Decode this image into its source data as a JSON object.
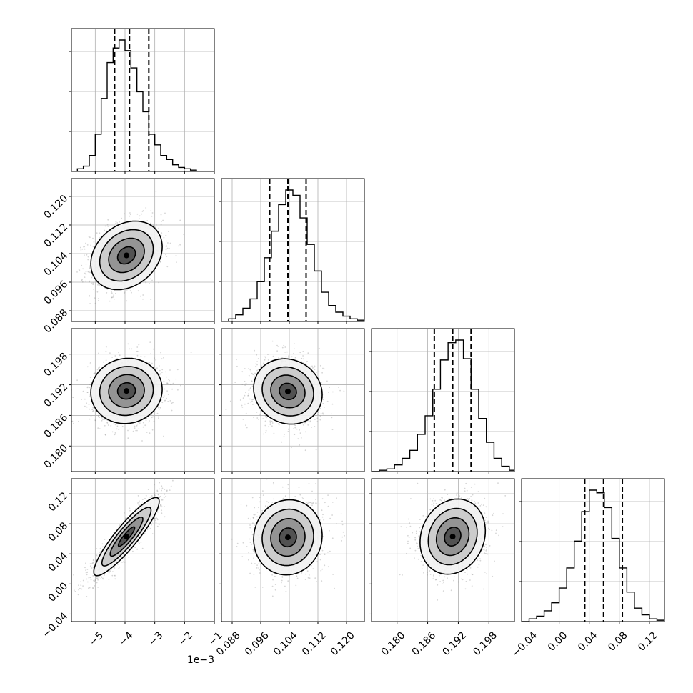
{
  "chart_data": {
    "type": "corner",
    "figure": "corner plot of a 4-parameter posterior sample",
    "grid": true,
    "parameters": [
      {
        "index": 0,
        "range": [
          -5.8,
          -1.0
        ],
        "ticks": [
          -5,
          -4,
          -3,
          -2,
          -1
        ],
        "tick_labels": [
          "−5",
          "−4",
          "−3",
          "−2",
          "−1"
        ],
        "offset_text": "1e−3",
        "median": -3.85,
        "q16": -4.35,
        "q84": -3.2,
        "histogram": {
          "bins": [
            -5.8,
            -5.6,
            -5.4,
            -5.2,
            -5.0,
            -4.8,
            -4.6,
            -4.4,
            -4.2,
            -4.0,
            -3.8,
            -3.6,
            -3.4,
            -3.2,
            -3.0,
            -2.8,
            -2.6,
            -2.4,
            -2.2,
            -2.0,
            -1.8,
            -1.6,
            -1.4
          ],
          "counts": [
            0.0,
            0.02,
            0.04,
            0.12,
            0.28,
            0.55,
            0.82,
            0.93,
            0.99,
            0.91,
            0.78,
            0.6,
            0.45,
            0.28,
            0.2,
            0.12,
            0.09,
            0.05,
            0.03,
            0.02,
            0.01,
            0.0
          ]
        }
      },
      {
        "index": 1,
        "range": [
          0.085,
          0.125
        ],
        "ticks": [
          0.088,
          0.096,
          0.104,
          0.112,
          0.12
        ],
        "tick_labels": [
          "0.088",
          "0.096",
          "0.104",
          "0.112",
          "0.120"
        ],
        "median": 0.1036,
        "q16": 0.0985,
        "q84": 0.1087,
        "histogram": {
          "bins": [
            0.085,
            0.087,
            0.089,
            0.091,
            0.093,
            0.095,
            0.097,
            0.099,
            0.101,
            0.103,
            0.105,
            0.107,
            0.109,
            0.111,
            0.113,
            0.115,
            0.117,
            0.119,
            0.121,
            0.123,
            0.125
          ],
          "counts": [
            0.0,
            0.02,
            0.05,
            0.1,
            0.17,
            0.3,
            0.48,
            0.68,
            0.88,
            0.99,
            0.95,
            0.78,
            0.58,
            0.38,
            0.22,
            0.12,
            0.07,
            0.04,
            0.02,
            0.01
          ]
        }
      },
      {
        "index": 2,
        "range": [
          0.175,
          0.203
        ],
        "ticks": [
          0.18,
          0.186,
          0.192,
          0.198
        ],
        "tick_labels": [
          "0.180",
          "0.186",
          "0.192",
          "0.198"
        ],
        "median": 0.1909,
        "q16": 0.1873,
        "q84": 0.1945,
        "histogram": {
          "bins": [
            0.175,
            0.1765,
            0.178,
            0.1795,
            0.181,
            0.1825,
            0.184,
            0.1855,
            0.187,
            0.1885,
            0.19,
            0.1915,
            0.193,
            0.1945,
            0.196,
            0.1975,
            0.199,
            0.2005,
            0.202,
            0.203
          ],
          "counts": [
            0.0,
            0.01,
            0.02,
            0.05,
            0.1,
            0.16,
            0.28,
            0.42,
            0.62,
            0.84,
            0.97,
            0.99,
            0.85,
            0.62,
            0.4,
            0.22,
            0.1,
            0.04,
            0.01
          ]
        }
      },
      {
        "index": 3,
        "range": [
          -0.05,
          0.14
        ],
        "ticks": [
          -0.04,
          0.0,
          0.04,
          0.08,
          0.12
        ],
        "tick_labels": [
          "−0.04",
          "0.00",
          "0.04",
          "0.08",
          "0.12"
        ],
        "median": 0.059,
        "q16": 0.034,
        "q84": 0.084,
        "histogram": {
          "bins": [
            -0.05,
            -0.04,
            -0.03,
            -0.02,
            -0.01,
            0.0,
            0.01,
            0.02,
            0.03,
            0.04,
            0.05,
            0.06,
            0.07,
            0.08,
            0.09,
            0.1,
            0.11,
            0.12,
            0.13,
            0.14
          ],
          "counts": [
            0.0,
            0.02,
            0.04,
            0.08,
            0.14,
            0.25,
            0.4,
            0.6,
            0.82,
            0.98,
            0.96,
            0.85,
            0.62,
            0.4,
            0.22,
            0.1,
            0.05,
            0.02,
            0.01
          ]
        }
      }
    ],
    "pairs": [
      {
        "x": 0,
        "y": 1,
        "center": [
          -3.95,
          0.1035
        ],
        "sd": [
          0.6,
          0.0048
        ],
        "rho": 0.25
      },
      {
        "x": 0,
        "y": 2,
        "center": [
          -3.95,
          0.1908
        ],
        "sd": [
          0.6,
          0.0032
        ],
        "rho": 0.05
      },
      {
        "x": 1,
        "y": 2,
        "center": [
          0.1036,
          0.1907
        ],
        "sd": [
          0.0048,
          0.0032
        ],
        "rho": -0.1
      },
      {
        "x": 0,
        "y": 3,
        "center": [
          -3.95,
          0.063
        ],
        "sd": [
          0.55,
          0.026
        ],
        "rho": 0.9
      },
      {
        "x": 1,
        "y": 3,
        "center": [
          0.1036,
          0.062
        ],
        "sd": [
          0.0048,
          0.025
        ],
        "rho": 0.05
      },
      {
        "x": 2,
        "y": 3,
        "center": [
          0.1909,
          0.063
        ],
        "sd": [
          0.0032,
          0.025
        ],
        "rho": 0.15
      }
    ],
    "contour_levels_sigma": [
      0.5,
      1.0,
      1.5,
      2.0
    ],
    "colors": {
      "hist": "#000000",
      "contour": "#000000",
      "points": "#888888",
      "grid": "#b0b0b0"
    }
  }
}
